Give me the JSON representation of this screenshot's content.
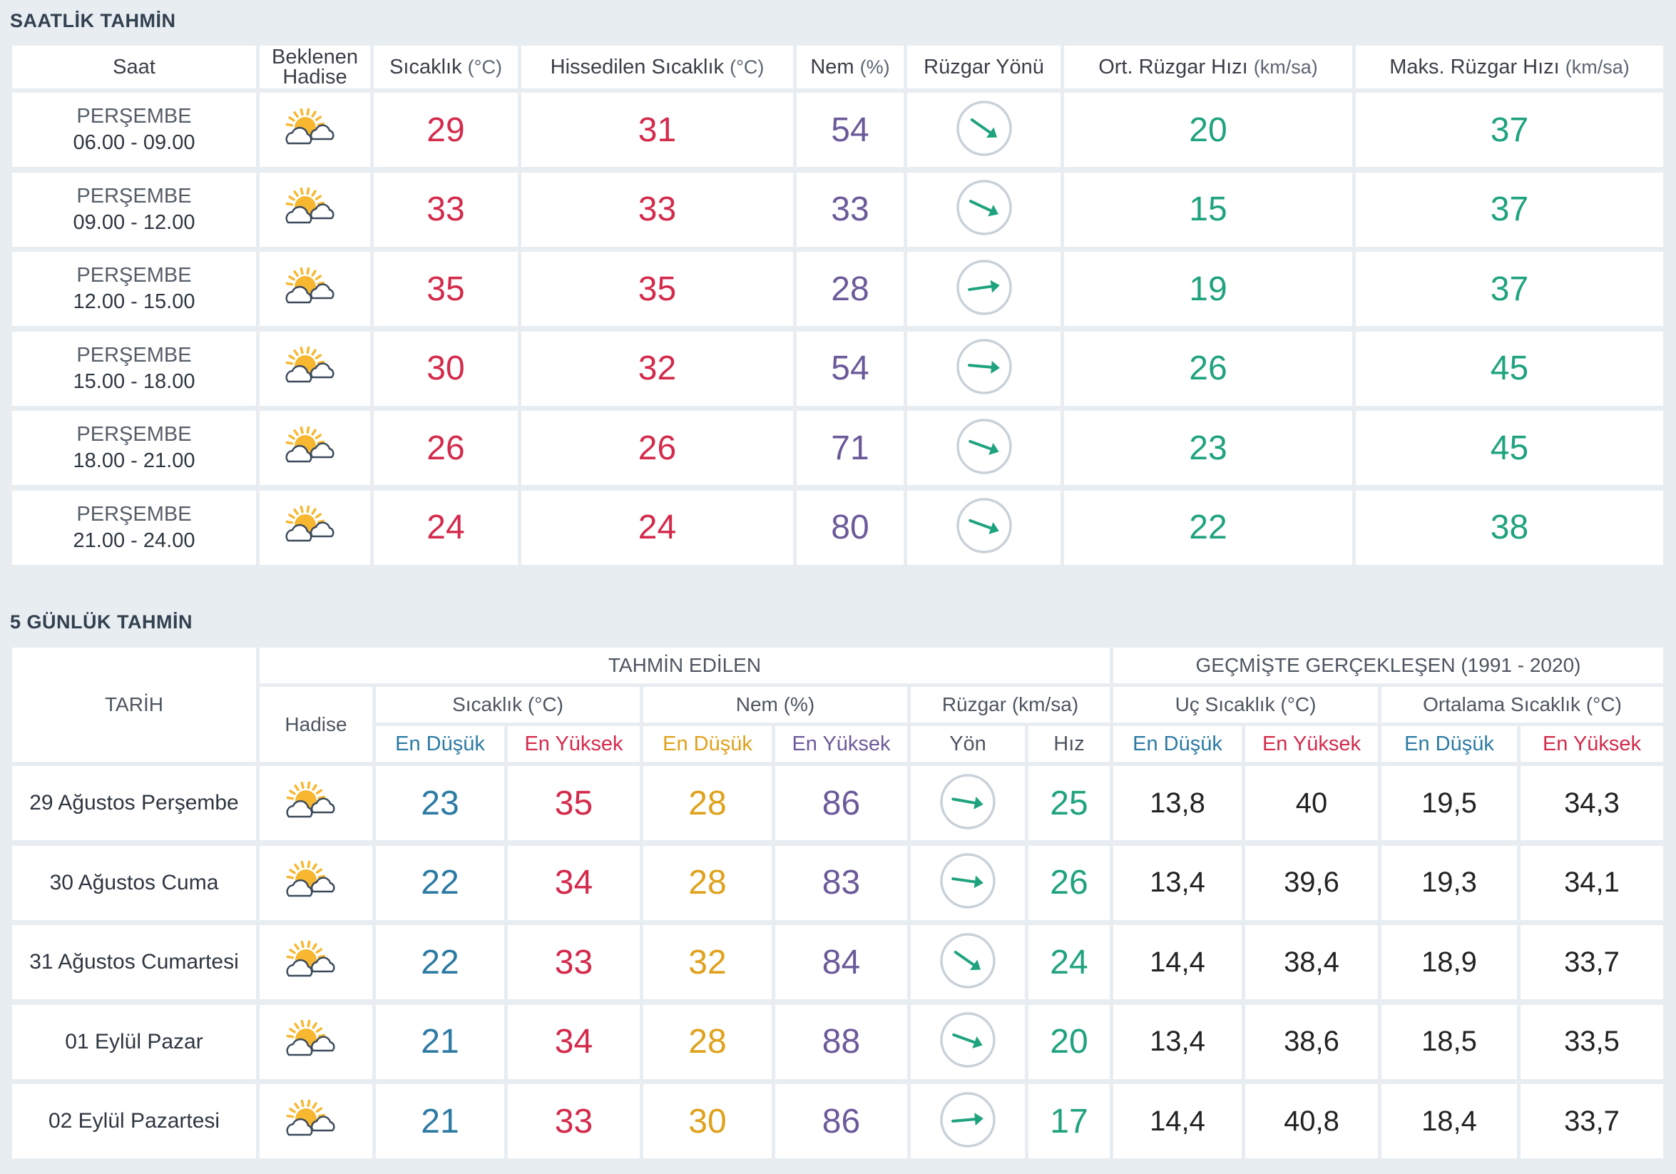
{
  "hourly": {
    "title": "SAATLİK TAHMİN",
    "headers": {
      "saat": "Saat",
      "hadise_1": "Beklenen",
      "hadise_2": "Hadise",
      "sicaklik": "Sıcaklık",
      "sicaklik_unit": "(°C)",
      "hissedilen": "Hissedilen Sıcaklık",
      "hissedilen_unit": "(°C)",
      "nem": "Nem",
      "nem_unit": "(%)",
      "ruzgar_yonu": "Rüzgar Yönü",
      "ort_ruzgar": "Ort. Rüzgar Hızı",
      "ort_ruzgar_unit": "(km/sa)",
      "maks_ruzgar": "Maks. Rüzgar Hızı",
      "maks_ruzgar_unit": "(km/sa)"
    },
    "rows": [
      {
        "day": "PERŞEMBE",
        "time": "06.00 - 09.00",
        "icon": "partly-cloudy-icon",
        "temp": "29",
        "feels": "31",
        "hum": "54",
        "wind_dir_deg": 35,
        "avg": "20",
        "max": "37"
      },
      {
        "day": "PERŞEMBE",
        "time": "09.00 - 12.00",
        "icon": "partly-cloudy-icon",
        "temp": "33",
        "feels": "33",
        "hum": "33",
        "wind_dir_deg": 25,
        "avg": "15",
        "max": "37"
      },
      {
        "day": "PERŞEMBE",
        "time": "12.00 - 15.00",
        "icon": "partly-cloudy-icon",
        "temp": "35",
        "feels": "35",
        "hum": "28",
        "wind_dir_deg": -8,
        "avg": "19",
        "max": "37"
      },
      {
        "day": "PERŞEMBE",
        "time": "15.00 - 18.00",
        "icon": "partly-cloudy-icon",
        "temp": "30",
        "feels": "32",
        "hum": "54",
        "wind_dir_deg": 5,
        "avg": "26",
        "max": "45"
      },
      {
        "day": "PERŞEMBE",
        "time": "18.00 - 21.00",
        "icon": "partly-cloudy-icon",
        "temp": "26",
        "feels": "26",
        "hum": "71",
        "wind_dir_deg": 20,
        "avg": "23",
        "max": "45"
      },
      {
        "day": "PERŞEMBE",
        "time": "21.00 - 24.00",
        "icon": "partly-cloudy-icon",
        "temp": "24",
        "feels": "24",
        "hum": "80",
        "wind_dir_deg": 20,
        "avg": "22",
        "max": "38"
      }
    ]
  },
  "daily": {
    "title": "5 GÜNLÜK TAHMİN",
    "headers": {
      "tarih": "TARİH",
      "tahmin_edilen": "TAHMİN EDİLEN",
      "gecmiste": "GEÇMİŞTE GERÇEKLEŞEN (1991 - 2020)",
      "hadise": "Hadise",
      "sicaklik": "Sıcaklık (°C)",
      "nem": "Nem (%)",
      "ruzgar": "Rüzgar (km/sa)",
      "uc_sicaklik": "Uç Sıcaklık (°C)",
      "ort_sicaklik": "Ortalama Sıcaklık (°C)",
      "en_dusuk": "En Düşük",
      "en_yuksek": "En Yüksek",
      "yon": "Yön",
      "hiz": "Hız"
    },
    "rows": [
      {
        "date": "29 Ağustos Perşembe",
        "icon": "partly-cloudy-icon",
        "t_min": "23",
        "t_max": "35",
        "h_min": "28",
        "h_max": "86",
        "wind_dir_deg": 10,
        "speed": "25",
        "ext_min": "13,8",
        "ext_max": "40",
        "avg_min": "19,5",
        "avg_max": "34,3"
      },
      {
        "date": "30 Ağustos Cuma",
        "icon": "partly-cloudy-icon",
        "t_min": "22",
        "t_max": "34",
        "h_min": "28",
        "h_max": "83",
        "wind_dir_deg": 8,
        "speed": "26",
        "ext_min": "13,4",
        "ext_max": "39,6",
        "avg_min": "19,3",
        "avg_max": "34,1"
      },
      {
        "date": "31 Ağustos Cumartesi",
        "icon": "partly-cloudy-icon",
        "t_min": "22",
        "t_max": "33",
        "h_min": "32",
        "h_max": "84",
        "wind_dir_deg": 35,
        "speed": "24",
        "ext_min": "14,4",
        "ext_max": "38,4",
        "avg_min": "18,9",
        "avg_max": "33,7"
      },
      {
        "date": "01 Eylül Pazar",
        "icon": "partly-cloudy-icon",
        "t_min": "21",
        "t_max": "34",
        "h_min": "28",
        "h_max": "88",
        "wind_dir_deg": 20,
        "speed": "20",
        "ext_min": "13,4",
        "ext_max": "38,6",
        "avg_min": "18,5",
        "avg_max": "33,5"
      },
      {
        "date": "02 Eylül Pazartesi",
        "icon": "partly-cloudy-icon",
        "t_min": "21",
        "t_max": "33",
        "h_min": "30",
        "h_max": "86",
        "wind_dir_deg": -5,
        "speed": "17",
        "ext_min": "14,4",
        "ext_max": "40,8",
        "avg_min": "18,4",
        "avg_max": "33,7"
      }
    ]
  },
  "colors": {
    "background": "#e8edf2",
    "temperature": "#d42a4c",
    "humidity": "#6b5a9a",
    "wind": "#1fa37e",
    "min_temp": "#2b7aa3",
    "humidity_min": "#e0a11b",
    "sun": "#f7b731",
    "cloud_stroke": "#3b4a5a",
    "wind_ring": "#c9d1d8"
  }
}
